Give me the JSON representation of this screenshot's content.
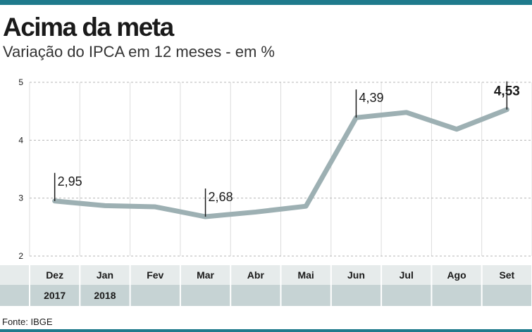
{
  "title": "Acima da meta",
  "subtitle": "Variação do IPCA em 12 meses - em %",
  "source": "Fonte: IBGE",
  "colors": {
    "accent": "#1f7a8c",
    "line": "#9db0b3",
    "grid": "#b5b5b5",
    "month_row_bg": "#e6ebeb",
    "year_row_bg": "#c6d3d4"
  },
  "chart_data": {
    "type": "line",
    "title": "Acima da meta",
    "subtitle": "Variação do IPCA em 12 meses - em %",
    "categories": [
      "Dez",
      "Jan",
      "Fev",
      "Mar",
      "Abr",
      "Mai",
      "Jun",
      "Jul",
      "Ago",
      "Set"
    ],
    "years": [
      {
        "label": "2017",
        "index": 0
      },
      {
        "label": "2018",
        "index": 1
      }
    ],
    "series": [
      {
        "values": [
          2.95,
          2.87,
          2.85,
          2.68,
          2.76,
          2.86,
          4.39,
          4.48,
          4.19,
          4.53
        ]
      }
    ],
    "ylim": [
      2,
      5
    ],
    "yticks": [
      "2",
      "3",
      "4",
      "5"
    ],
    "annotations": [
      {
        "index": 0,
        "label": "2,95",
        "bold": false
      },
      {
        "index": 3,
        "label": "2,68",
        "bold": false
      },
      {
        "index": 6,
        "label": "4,39",
        "bold": false
      },
      {
        "index": 9,
        "label": "4,53",
        "bold": true
      }
    ],
    "grid": true,
    "legend": "none"
  }
}
